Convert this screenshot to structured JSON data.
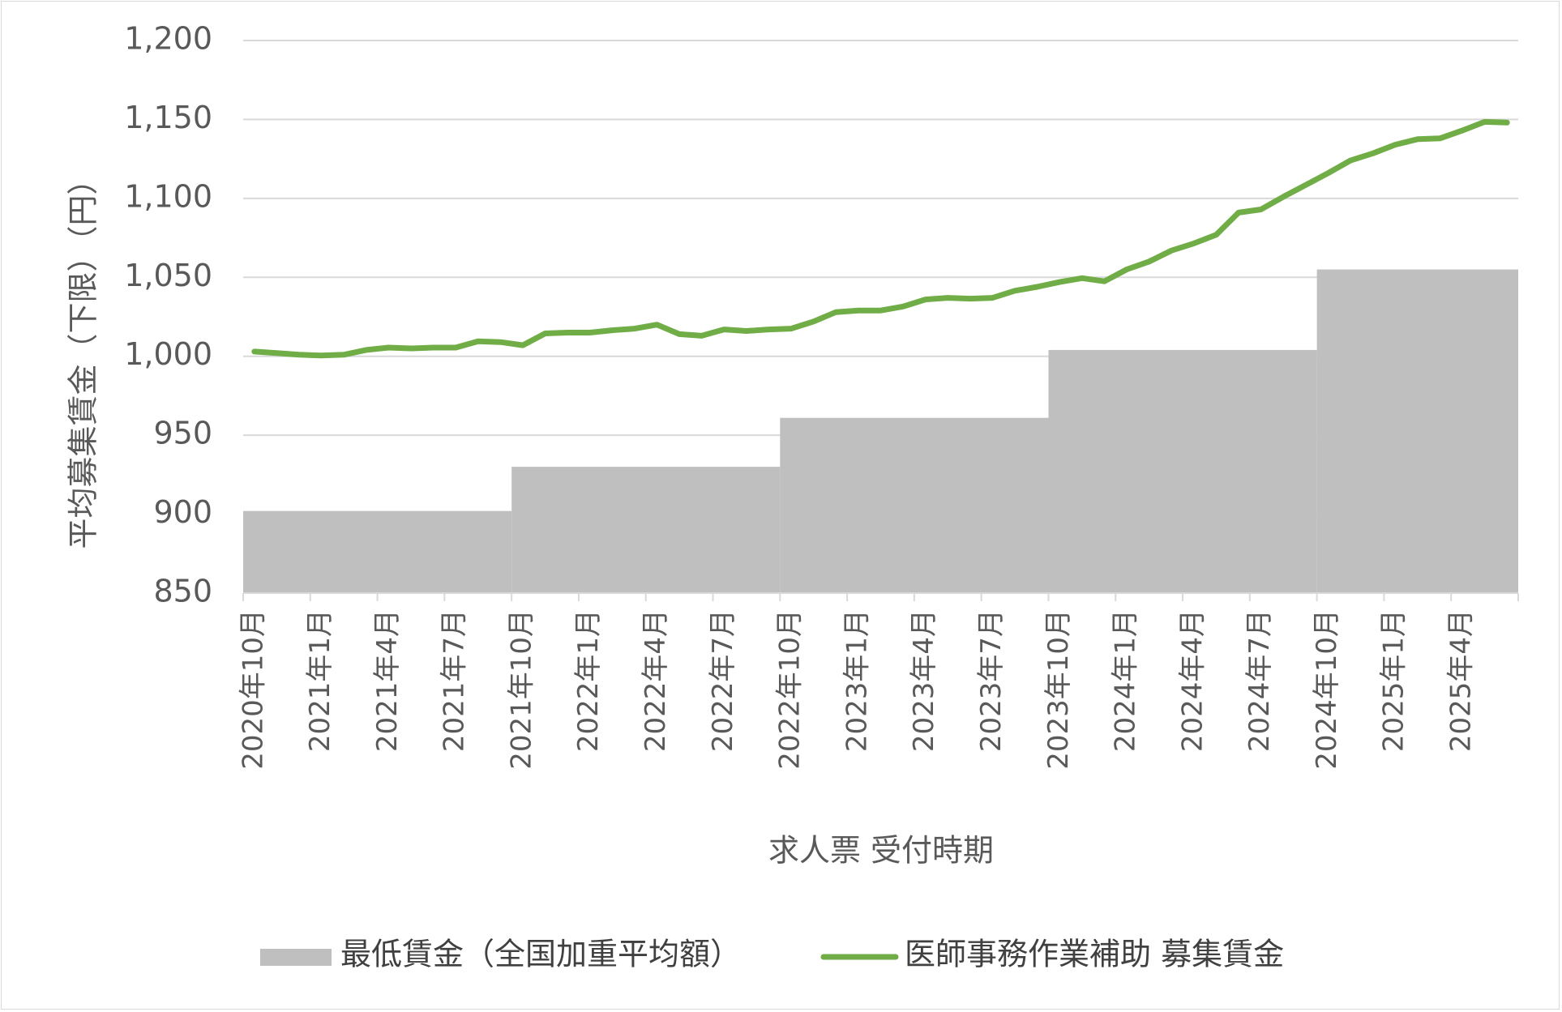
{
  "chart_data": {
    "type": "line",
    "xlabel": "求人票 受付時期",
    "ylabel": "平均募集賃金（下限）（円）",
    "ylim": [
      850,
      1200
    ],
    "yticks": [
      "850",
      "900",
      "950",
      "1,000",
      "1,050",
      "1,100",
      "1,150",
      "1,200"
    ],
    "ytick_values": [
      850,
      900,
      950,
      1000,
      1050,
      1100,
      1150,
      1200
    ],
    "grid": true,
    "legend_position": "bottom",
    "x_tick_labels": [
      "2020年10月",
      "2021年1月",
      "2021年4月",
      "2021年7月",
      "2021年10月",
      "2022年1月",
      "2022年4月",
      "2022年7月",
      "2022年10月",
      "2023年1月",
      "2023年4月",
      "2023年7月",
      "2023年10月",
      "2024年1月",
      "2024年4月",
      "2024年7月",
      "2024年10月",
      "2025年1月",
      "2025年4月"
    ],
    "months": [
      "2020年10月",
      "2020年11月",
      "2020年12月",
      "2021年1月",
      "2021年2月",
      "2021年3月",
      "2021年4月",
      "2021年5月",
      "2021年6月",
      "2021年7月",
      "2021年8月",
      "2021年9月",
      "2021年10月",
      "2021年11月",
      "2021年12月",
      "2022年1月",
      "2022年2月",
      "2022年3月",
      "2022年4月",
      "2022年5月",
      "2022年6月",
      "2022年7月",
      "2022年8月",
      "2022年9月",
      "2022年10月",
      "2022年11月",
      "2022年12月",
      "2023年1月",
      "2023年2月",
      "2023年3月",
      "2023年4月",
      "2023年5月",
      "2023年6月",
      "2023年7月",
      "2023年8月",
      "2023年9月",
      "2023年10月",
      "2023年11月",
      "2023年12月",
      "2024年1月",
      "2024年2月",
      "2024年3月",
      "2024年4月",
      "2024年5月",
      "2024年6月",
      "2024年7月",
      "2024年8月",
      "2024年9月",
      "2024年10月",
      "2024年11月",
      "2024年12月",
      "2025年1月",
      "2025年2月",
      "2025年3月",
      "2025年4月",
      "2025年5月",
      "2025年6月"
    ],
    "series": [
      {
        "name": "最低賃金（全国加重平均額）",
        "type": "area",
        "color": "#bfbfbf",
        "values": [
          902,
          902,
          902,
          902,
          902,
          902,
          902,
          902,
          902,
          902,
          902,
          902,
          930,
          930,
          930,
          930,
          930,
          930,
          930,
          930,
          930,
          930,
          930,
          930,
          961,
          961,
          961,
          961,
          961,
          961,
          961,
          961,
          961,
          961,
          961,
          961,
          1004,
          1004,
          1004,
          1004,
          1004,
          1004,
          1004,
          1004,
          1004,
          1004,
          1004,
          1004,
          1055,
          1055,
          1055,
          1055,
          1055,
          1055,
          1055,
          1055,
          1055
        ]
      },
      {
        "name": "医師事務作業補助 募集賃金",
        "type": "line",
        "color": "#70ad47",
        "values": [
          1003,
          1002,
          1001,
          1000.5,
          1001,
          1004,
          1005.5,
          1005,
          1005.5,
          1005.5,
          1009.5,
          1009,
          1007,
          1014.5,
          1015,
          1015,
          1016.5,
          1017.5,
          1020,
          1014,
          1013,
          1017,
          1016,
          1017,
          1017.5,
          1022,
          1028,
          1029,
          1029,
          1031.5,
          1036,
          1037,
          1036.5,
          1037,
          1041.5,
          1044,
          1047,
          1049.5,
          1047.5,
          1055,
          1060,
          1067,
          1071.5,
          1077,
          1091,
          1093,
          1101,
          1108.5,
          1116,
          1124,
          1128.5,
          1134,
          1137.5,
          1138,
          1143,
          1148.5,
          1148
        ]
      }
    ]
  }
}
